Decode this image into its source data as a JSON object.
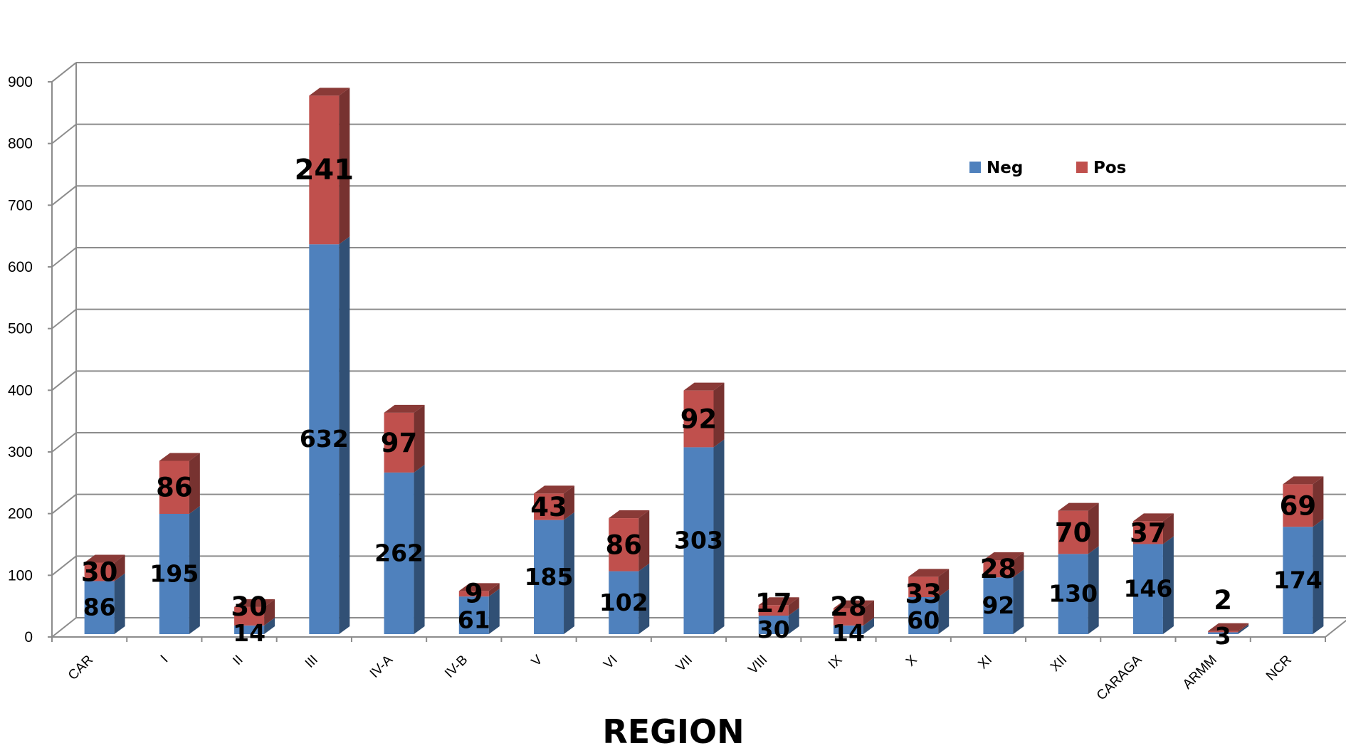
{
  "chart_data": {
    "type": "bar",
    "stacked": true,
    "three_d": true,
    "categories": [
      "CAR",
      "I",
      "II",
      "III",
      "IV-A",
      "IV-B",
      "V",
      "VI",
      "VII",
      "VIII",
      "IX",
      "X",
      "XI",
      "XII",
      "CARAGA",
      "ARMM",
      "NCR"
    ],
    "series": [
      {
        "name": "Neg",
        "color": "#4F81BD",
        "values": [
          86,
          195,
          14,
          632,
          262,
          61,
          185,
          102,
          303,
          30,
          14,
          60,
          92,
          130,
          146,
          3,
          174
        ]
      },
      {
        "name": "Pos",
        "color": "#C0504D",
        "values": [
          30,
          86,
          30,
          241,
          97,
          9,
          43,
          86,
          92,
          17,
          28,
          33,
          28,
          70,
          37,
          2,
          69
        ]
      }
    ],
    "xlabel": "REGION",
    "ylabel": "",
    "ylim": [
      0,
      900
    ],
    "yticks": [
      "0",
      "100",
      "200",
      "300",
      "400",
      "500",
      "600",
      "700",
      "800",
      "900"
    ],
    "grid": true,
    "legend_position": "top-right"
  }
}
